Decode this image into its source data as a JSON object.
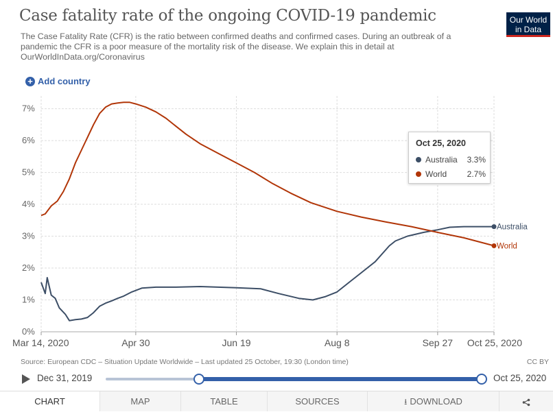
{
  "header": {
    "title": "Case fatality rate of the ongoing COVID-19 pandemic",
    "subtitle": "The Case Fatality Rate (CFR) is the ratio between confirmed deaths and confirmed cases. During an outbreak of a pandemic the CFR is a poor measure of the mortality risk of the disease. We explain this in detail at OurWorldInData.org/Coronavirus",
    "logo_line1": "Our World",
    "logo_line2": "in Data",
    "add_country_label": "Add country"
  },
  "colors": {
    "australia": "#3c4e66",
    "world": "#b13507",
    "accent": "#3360a9",
    "logo_bg": "#002147"
  },
  "chart_data": {
    "type": "line",
    "x_ticks": [
      "Mar 14, 2020",
      "Apr 30",
      "Jun 19",
      "Aug 8",
      "Sep 27",
      "Oct 25, 2020"
    ],
    "y_ticks": [
      "0%",
      "1%",
      "2%",
      "3%",
      "4%",
      "5%",
      "6%",
      "7%"
    ],
    "ylim": [
      0,
      7.4
    ],
    "x_dates": [
      "2020-03-14",
      "2020-04-30",
      "2020-06-19",
      "2020-08-08",
      "2020-09-27",
      "2020-10-25"
    ],
    "series": [
      {
        "name": "Australia",
        "color": "#3c4e66",
        "points": [
          [
            "2020-03-14",
            1.55
          ],
          [
            "2020-03-16",
            1.2
          ],
          [
            "2020-03-17",
            1.7
          ],
          [
            "2020-03-19",
            1.15
          ],
          [
            "2020-03-21",
            1.05
          ],
          [
            "2020-03-23",
            0.75
          ],
          [
            "2020-03-26",
            0.55
          ],
          [
            "2020-03-28",
            0.35
          ],
          [
            "2020-03-31",
            0.38
          ],
          [
            "2020-04-03",
            0.4
          ],
          [
            "2020-04-06",
            0.45
          ],
          [
            "2020-04-09",
            0.6
          ],
          [
            "2020-04-12",
            0.8
          ],
          [
            "2020-04-15",
            0.9
          ],
          [
            "2020-04-18",
            0.97
          ],
          [
            "2020-04-21",
            1.05
          ],
          [
            "2020-04-24",
            1.12
          ],
          [
            "2020-04-28",
            1.25
          ],
          [
            "2020-05-03",
            1.37
          ],
          [
            "2020-05-10",
            1.4
          ],
          [
            "2020-05-20",
            1.4
          ],
          [
            "2020-06-01",
            1.42
          ],
          [
            "2020-06-19",
            1.38
          ],
          [
            "2020-07-01",
            1.35
          ],
          [
            "2020-07-10",
            1.2
          ],
          [
            "2020-07-20",
            1.05
          ],
          [
            "2020-07-27",
            1.0
          ],
          [
            "2020-08-02",
            1.1
          ],
          [
            "2020-08-08",
            1.25
          ],
          [
            "2020-08-14",
            1.55
          ],
          [
            "2020-08-20",
            1.85
          ],
          [
            "2020-08-27",
            2.2
          ],
          [
            "2020-09-03",
            2.7
          ],
          [
            "2020-09-06",
            2.85
          ],
          [
            "2020-09-12",
            3.0
          ],
          [
            "2020-09-20",
            3.12
          ],
          [
            "2020-09-27",
            3.2
          ],
          [
            "2020-10-03",
            3.28
          ],
          [
            "2020-10-10",
            3.3
          ],
          [
            "2020-10-25",
            3.3
          ]
        ]
      },
      {
        "name": "World",
        "color": "#b13507",
        "points": [
          [
            "2020-03-14",
            3.65
          ],
          [
            "2020-03-16",
            3.7
          ],
          [
            "2020-03-19",
            3.95
          ],
          [
            "2020-03-22",
            4.1
          ],
          [
            "2020-03-25",
            4.4
          ],
          [
            "2020-03-28",
            4.8
          ],
          [
            "2020-03-31",
            5.3
          ],
          [
            "2020-04-03",
            5.7
          ],
          [
            "2020-04-06",
            6.1
          ],
          [
            "2020-04-09",
            6.5
          ],
          [
            "2020-04-12",
            6.85
          ],
          [
            "2020-04-15",
            7.05
          ],
          [
            "2020-04-18",
            7.15
          ],
          [
            "2020-04-21",
            7.18
          ],
          [
            "2020-04-24",
            7.2
          ],
          [
            "2020-04-27",
            7.2
          ],
          [
            "2020-04-30",
            7.15
          ],
          [
            "2020-05-05",
            7.05
          ],
          [
            "2020-05-10",
            6.9
          ],
          [
            "2020-05-15",
            6.7
          ],
          [
            "2020-05-20",
            6.45
          ],
          [
            "2020-05-25",
            6.2
          ],
          [
            "2020-06-01",
            5.9
          ],
          [
            "2020-06-10",
            5.6
          ],
          [
            "2020-06-19",
            5.3
          ],
          [
            "2020-06-28",
            5.0
          ],
          [
            "2020-07-07",
            4.65
          ],
          [
            "2020-07-16",
            4.35
          ],
          [
            "2020-07-26",
            4.05
          ],
          [
            "2020-08-08",
            3.78
          ],
          [
            "2020-08-20",
            3.6
          ],
          [
            "2020-09-01",
            3.45
          ],
          [
            "2020-09-14",
            3.3
          ],
          [
            "2020-09-27",
            3.12
          ],
          [
            "2020-10-10",
            2.95
          ],
          [
            "2020-10-25",
            2.7
          ]
        ]
      }
    ],
    "grid": true,
    "legend": "right-end-labels"
  },
  "tooltip": {
    "date": "Oct 25, 2020",
    "rows": [
      {
        "name": "Australia",
        "value": "3.3%"
      },
      {
        "name": "World",
        "value": "2.7%"
      }
    ]
  },
  "footer": {
    "source": "Source: European CDC – Situation Update Worldwide – Last updated 25 October, 19:30 (London time)",
    "license": "CC BY"
  },
  "timeline": {
    "start_label": "Dec 31, 2019",
    "end_label": "Oct 25, 2020"
  },
  "tabs": [
    {
      "label": "CHART",
      "active": true
    },
    {
      "label": "MAP",
      "active": false
    },
    {
      "label": "TABLE",
      "active": false
    },
    {
      "label": "SOURCES",
      "active": false
    },
    {
      "label": "DOWNLOAD",
      "active": false
    }
  ]
}
